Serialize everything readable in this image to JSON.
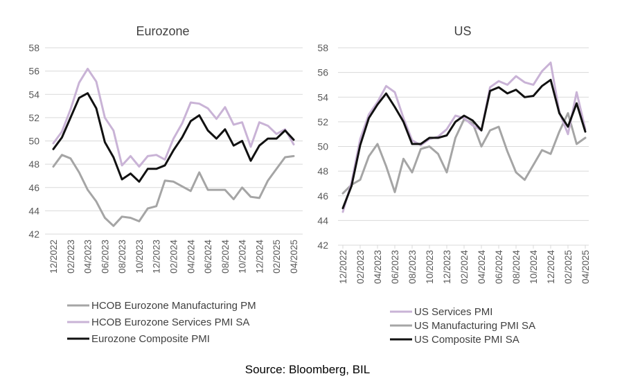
{
  "source": "Source: Bloomberg, BIL",
  "colors": {
    "manufacturing": "#A5A5A5",
    "services": "#C9B3D6",
    "composite": "#111111",
    "grid": "#D9D9D9",
    "text": "#595959"
  },
  "chart_data": [
    {
      "type": "line",
      "title": "Eurozone",
      "xlabel": "",
      "ylabel": "",
      "ylim": [
        42,
        58
      ],
      "yticks": [
        "58",
        "56",
        "54",
        "52",
        "50",
        "48",
        "46",
        "44",
        "42"
      ],
      "grid": true,
      "legend_position": "bottom",
      "x": [
        "12/2022",
        "01/2023",
        "02/2023",
        "03/2023",
        "04/2023",
        "05/2023",
        "06/2023",
        "07/2023",
        "08/2023",
        "09/2023",
        "10/2023",
        "11/2023",
        "12/2023",
        "01/2024",
        "02/2024",
        "03/2024",
        "04/2024",
        "05/2024",
        "06/2024",
        "07/2024",
        "08/2024",
        "09/2024",
        "10/2024",
        "11/2024",
        "12/2024",
        "01/2025",
        "02/2025",
        "03/2025",
        "04/2025"
      ],
      "xtick_labels": [
        "12/2022",
        "02/2023",
        "04/2023",
        "06/2023",
        "08/2023",
        "10/2023",
        "12/2023",
        "02/2024",
        "04/2024",
        "06/2024",
        "08/2024",
        "10/2024",
        "12/2024",
        "02/2025",
        "04/2025"
      ],
      "series": [
        {
          "name": "HCOB Eurozone Manufacturing PM",
          "color_key": "manufacturing",
          "values": [
            47.8,
            48.8,
            48.5,
            47.3,
            45.8,
            44.8,
            43.4,
            42.7,
            43.5,
            43.4,
            43.1,
            44.2,
            44.4,
            46.6,
            46.5,
            46.1,
            45.7,
            47.3,
            45.8,
            45.8,
            45.8,
            45.0,
            46.0,
            45.2,
            45.1,
            46.6,
            47.6,
            48.6,
            48.7
          ]
        },
        {
          "name": "HCOB Eurozone Services PMI SA",
          "color_key": "services",
          "values": [
            49.8,
            50.8,
            52.7,
            55.0,
            56.2,
            55.1,
            52.0,
            50.9,
            47.9,
            48.7,
            47.8,
            48.7,
            48.8,
            48.4,
            50.2,
            51.5,
            53.3,
            53.2,
            52.8,
            51.9,
            52.9,
            51.4,
            51.6,
            49.5,
            51.6,
            51.3,
            50.6,
            51.0,
            49.7
          ]
        },
        {
          "name": "Eurozone Composite PMI",
          "color_key": "composite",
          "values": [
            49.3,
            50.3,
            52.0,
            53.7,
            54.1,
            52.8,
            49.9,
            48.6,
            46.7,
            47.2,
            46.5,
            47.6,
            47.6,
            47.9,
            49.2,
            50.3,
            51.7,
            52.2,
            50.9,
            50.2,
            51.0,
            49.6,
            50.0,
            48.3,
            49.6,
            50.2,
            50.2,
            50.9,
            50.1
          ]
        }
      ]
    },
    {
      "type": "line",
      "title": "US",
      "xlabel": "",
      "ylabel": "",
      "ylim": [
        42,
        58
      ],
      "yticks": [
        "58",
        "56",
        "54",
        "52",
        "50",
        "48",
        "46",
        "44",
        "42"
      ],
      "grid": true,
      "legend_position": "bottom",
      "x": [
        "12/2022",
        "01/2023",
        "02/2023",
        "03/2023",
        "04/2023",
        "05/2023",
        "06/2023",
        "07/2023",
        "08/2023",
        "09/2023",
        "10/2023",
        "11/2023",
        "12/2023",
        "01/2024",
        "02/2024",
        "03/2024",
        "04/2024",
        "05/2024",
        "06/2024",
        "07/2024",
        "08/2024",
        "09/2024",
        "10/2024",
        "11/2024",
        "12/2024",
        "01/2025",
        "02/2025",
        "03/2025",
        "04/2025"
      ],
      "xtick_labels": [
        "12/2022",
        "02/2023",
        "04/2023",
        "06/2023",
        "08/2023",
        "10/2023",
        "12/2023",
        "02/2024",
        "04/2024",
        "06/2024",
        "08/2024",
        "10/2024",
        "12/2024",
        "02/2025",
        "04/2025"
      ],
      "series": [
        {
          "name": "US Services PMI",
          "color_key": "services",
          "values": [
            44.7,
            47.1,
            50.6,
            52.6,
            53.6,
            54.9,
            54.4,
            52.3,
            50.5,
            50.1,
            50.6,
            50.8,
            51.4,
            52.5,
            52.3,
            51.7,
            51.3,
            54.8,
            55.3,
            55.0,
            55.7,
            55.2,
            55.0,
            56.1,
            56.8,
            52.8,
            51.0,
            54.4,
            51.4
          ]
        },
        {
          "name": "US Manufacturing PMI SA",
          "color_key": "manufacturing",
          "values": [
            46.2,
            46.9,
            47.3,
            49.2,
            50.2,
            48.4,
            46.3,
            49.0,
            47.9,
            49.8,
            50.0,
            49.4,
            47.9,
            50.7,
            52.2,
            51.9,
            50.0,
            51.3,
            51.6,
            49.6,
            47.9,
            47.3,
            48.5,
            49.7,
            49.4,
            51.2,
            52.7,
            50.2,
            50.7
          ]
        },
        {
          "name": "US Composite PMI SA",
          "color_key": "composite",
          "values": [
            45.0,
            46.8,
            50.1,
            52.3,
            53.4,
            54.3,
            53.2,
            52.0,
            50.2,
            50.2,
            50.7,
            50.7,
            50.9,
            52.0,
            52.5,
            52.1,
            51.3,
            54.5,
            54.8,
            54.3,
            54.6,
            54.0,
            54.1,
            54.9,
            55.4,
            52.7,
            51.6,
            53.5,
            51.2
          ]
        }
      ]
    }
  ]
}
